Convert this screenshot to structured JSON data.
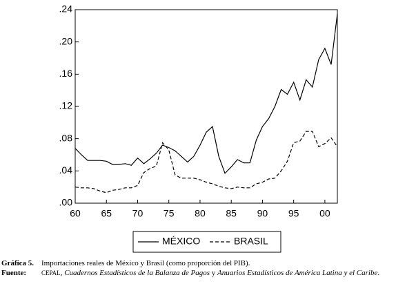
{
  "chart_data": {
    "type": "line",
    "x": [
      1960,
      1961,
      1962,
      1963,
      1964,
      1965,
      1966,
      1967,
      1968,
      1969,
      1970,
      1971,
      1972,
      1973,
      1974,
      1975,
      1976,
      1977,
      1978,
      1979,
      1980,
      1981,
      1982,
      1983,
      1984,
      1985,
      1986,
      1987,
      1988,
      1989,
      1990,
      1991,
      1992,
      1993,
      1994,
      1995,
      1996,
      1997,
      1998,
      1999,
      2000,
      2001,
      2002
    ],
    "series": [
      {
        "name": "MÉXICO",
        "color": "#000000",
        "dash": "solid",
        "values": [
          0.068,
          0.06,
          0.053,
          0.053,
          0.053,
          0.052,
          0.048,
          0.048,
          0.049,
          0.047,
          0.056,
          0.049,
          0.055,
          0.062,
          0.072,
          0.069,
          0.065,
          0.058,
          0.051,
          0.058,
          0.072,
          0.088,
          0.095,
          0.058,
          0.037,
          0.045,
          0.054,
          0.05,
          0.05,
          0.078,
          0.095,
          0.105,
          0.12,
          0.141,
          0.135,
          0.15,
          0.128,
          0.153,
          0.144,
          0.178,
          0.192,
          0.172,
          0.235
        ]
      },
      {
        "name": "BRASIL",
        "color": "#000000",
        "dash": "dashed",
        "values": [
          0.02,
          0.019,
          0.019,
          0.018,
          0.015,
          0.013,
          0.016,
          0.017,
          0.019,
          0.019,
          0.022,
          0.038,
          0.043,
          0.046,
          0.075,
          0.066,
          0.035,
          0.031,
          0.031,
          0.031,
          0.029,
          0.026,
          0.024,
          0.021,
          0.019,
          0.018,
          0.02,
          0.019,
          0.019,
          0.024,
          0.026,
          0.03,
          0.031,
          0.04,
          0.052,
          0.075,
          0.077,
          0.089,
          0.089,
          0.07,
          0.074,
          0.081,
          0.07
        ]
      }
    ],
    "xlim": [
      1960,
      2002
    ],
    "xticks": [
      {
        "value": 1960,
        "label": "60"
      },
      {
        "value": 1965,
        "label": "65"
      },
      {
        "value": 1970,
        "label": "70"
      },
      {
        "value": 1975,
        "label": "75"
      },
      {
        "value": 1980,
        "label": "80"
      },
      {
        "value": 1985,
        "label": "85"
      },
      {
        "value": 1990,
        "label": "90"
      },
      {
        "value": 1995,
        "label": "95"
      },
      {
        "value": 2000,
        "label": "00"
      }
    ],
    "ylim": [
      0,
      0.24
    ],
    "yticks": [
      {
        "value": 0,
        "label": ".00"
      },
      {
        "value": 0.04,
        "label": ".04"
      },
      {
        "value": 0.08,
        "label": ".08"
      },
      {
        "value": 0.12,
        "label": ".12"
      },
      {
        "value": 0.16,
        "label": ".16"
      },
      {
        "value": 0.2,
        "label": ".20"
      },
      {
        "value": 0.24,
        "label": ".24"
      }
    ],
    "grid": false,
    "legend": "bottom"
  },
  "caption": {
    "label": "Gráfica 5.",
    "text": "Importaciones reales de México y Brasil (como proporción del PIB)."
  },
  "source": {
    "label": "Fuente:",
    "org": "CEPAL",
    "sep": ",",
    "title1": "Cuadernos Estadísticos de la Balanza de Pagos",
    "join": "y",
    "title2": "Anuarios Estadísticos de América Latina y el Caribe",
    "end": "."
  }
}
